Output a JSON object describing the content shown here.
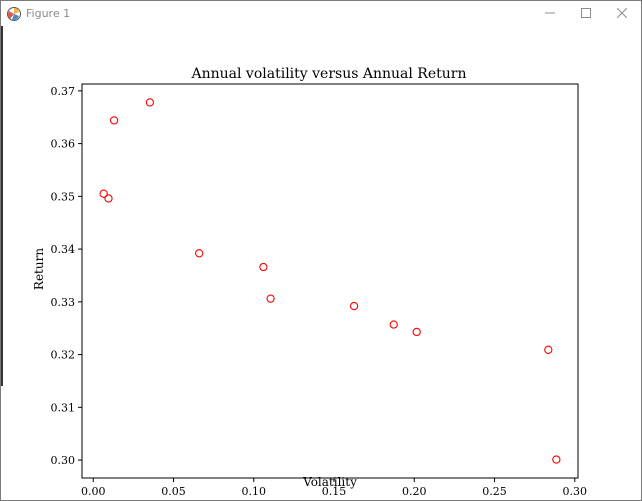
{
  "window": {
    "title": "Figure 1",
    "icon": "matplotlib-logo-icon",
    "controls": [
      "minimize-icon",
      "maximize-icon",
      "close-icon"
    ]
  },
  "chart_data": {
    "type": "scatter",
    "title": "Annual volatility versus Annual Return",
    "xlabel": "Volatility",
    "ylabel": "Return",
    "xlim": [
      -0.007,
      0.302
    ],
    "ylim": [
      0.2966,
      0.3713
    ],
    "xticks": [
      0.0,
      0.05,
      0.1,
      0.15,
      0.2,
      0.25,
      0.3
    ],
    "xtick_labels": [
      "0.00",
      "0.05",
      "0.10",
      "0.15",
      "0.20",
      "0.25",
      "0.30"
    ],
    "yticks": [
      0.3,
      0.31,
      0.32,
      0.33,
      0.34,
      0.35,
      0.36,
      0.37
    ],
    "ytick_labels": [
      "0.30",
      "0.31",
      "0.32",
      "0.33",
      "0.34",
      "0.35",
      "0.36",
      "0.37"
    ],
    "marker": "open-circle",
    "marker_color": "#ff0000",
    "grid": false,
    "points": [
      {
        "x": 0.0065,
        "y": 0.3505
      },
      {
        "x": 0.0095,
        "y": 0.3496
      },
      {
        "x": 0.013,
        "y": 0.3644
      },
      {
        "x": 0.0353,
        "y": 0.3678
      },
      {
        "x": 0.066,
        "y": 0.3392
      },
      {
        "x": 0.106,
        "y": 0.3366
      },
      {
        "x": 0.1105,
        "y": 0.3306
      },
      {
        "x": 0.1625,
        "y": 0.3292
      },
      {
        "x": 0.1872,
        "y": 0.3257
      },
      {
        "x": 0.2015,
        "y": 0.3243
      },
      {
        "x": 0.2835,
        "y": 0.3209
      },
      {
        "x": 0.2885,
        "y": 0.3001
      }
    ]
  }
}
